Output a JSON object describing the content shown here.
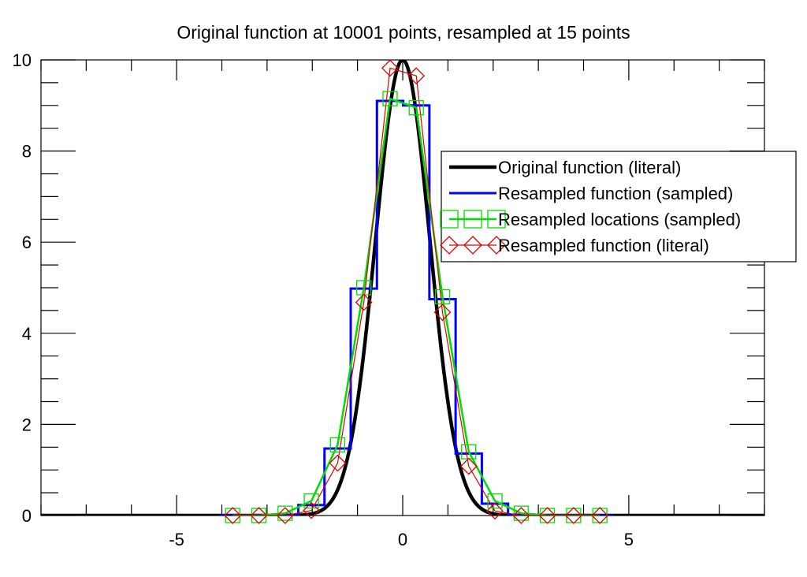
{
  "chart_data": {
    "type": "line",
    "title": "Original function at 10001 points, resampled at 15 points",
    "xlabel": "",
    "ylabel": "",
    "xlim": [
      -8,
      8
    ],
    "ylim": [
      0,
      10
    ],
    "x_ticks": [
      -5,
      0,
      5
    ],
    "x_tick_labels": [
      "-5",
      "0",
      "5"
    ],
    "y_ticks": [
      0,
      2,
      4,
      6,
      8,
      10
    ],
    "y_tick_labels": [
      "0",
      "2",
      "4",
      "6",
      "8",
      "10"
    ],
    "x_minor_step": 1,
    "y_minor_step": 0.5,
    "grid": false,
    "legend_position": "right",
    "series": [
      {
        "name": "Original function (literal)",
        "style": "line",
        "color": "#000000",
        "function": "gaussian",
        "amplitude": 10,
        "center": 0,
        "sigma": 0.6,
        "domain": [
          -8,
          8
        ]
      },
      {
        "name": "Resampled function (sampled)",
        "style": "step",
        "color": "#0000ff",
        "x": [
          -3.76,
          -3.18,
          -2.6,
          -2.02,
          -1.44,
          -0.86,
          -0.28,
          0.3,
          0.88,
          1.46,
          2.04,
          2.62,
          3.2,
          3.78,
          4.36
        ],
        "y": [
          0.0,
          0.0,
          0.02,
          0.23,
          1.47,
          4.98,
          9.1,
          9.0,
          4.75,
          1.36,
          0.26,
          0.02,
          0.0,
          0.0,
          0.0
        ]
      },
      {
        "name": "Resampled locations (sampled)",
        "style": "line-markers",
        "marker": "square",
        "color": "#00dd00",
        "x": [
          -3.76,
          -3.18,
          -2.6,
          -2.02,
          -1.44,
          -0.86,
          -0.28,
          0.3,
          0.88,
          1.46,
          2.04,
          2.62,
          3.2,
          3.78,
          4.36
        ],
        "y": [
          0.0,
          0.0,
          0.05,
          0.32,
          1.55,
          5.0,
          9.15,
          8.95,
          4.8,
          1.4,
          0.32,
          0.05,
          0.0,
          0.0,
          0.0
        ]
      },
      {
        "name": "Resampled function (literal)",
        "style": "line-markers",
        "marker": "diamond",
        "color": "#dd0000",
        "x": [
          -3.76,
          -3.18,
          -2.6,
          -2.02,
          -1.44,
          -0.86,
          -0.28,
          0.3,
          0.88,
          1.46,
          2.04,
          2.62,
          3.2,
          3.78,
          4.36
        ],
        "y": [
          0.0,
          0.0,
          0.0,
          0.11,
          1.15,
          4.68,
          9.82,
          9.65,
          4.46,
          1.08,
          0.1,
          0.0,
          0.0,
          0.0,
          0.0
        ]
      }
    ]
  }
}
